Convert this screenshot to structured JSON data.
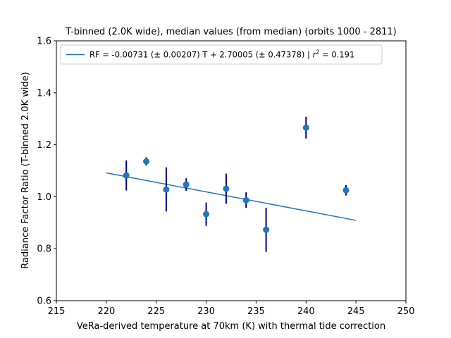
{
  "chart_data": {
    "type": "scatter",
    "title": "T-binned (2.0K wide), median values (from median) (orbits 1000 - 2811)",
    "xlabel": "VeRa-derived temperature at 70km (K) with thermal tide correction",
    "ylabel": "Radiance Factor Ratio (T-binned 2.0K wide)",
    "xlim": [
      215,
      250
    ],
    "ylim": [
      0.6,
      1.6
    ],
    "xticks": [
      215,
      220,
      225,
      230,
      235,
      240,
      245,
      250
    ],
    "yticks": [
      0.6,
      0.8,
      1.0,
      1.2,
      1.4,
      1.6
    ],
    "xtick_labels": [
      "215",
      "220",
      "225",
      "230",
      "235",
      "240",
      "245",
      "250"
    ],
    "ytick_labels": [
      "0.6",
      "0.8",
      "1.0",
      "1.2",
      "1.4",
      "1.6"
    ],
    "grid": false,
    "legend_position": "top-left",
    "points": [
      {
        "x": 222,
        "y": 1.082,
        "err": 0.058
      },
      {
        "x": 224,
        "y": 1.136,
        "err": 0.016
      },
      {
        "x": 226,
        "y": 1.028,
        "err": 0.085
      },
      {
        "x": 228,
        "y": 1.047,
        "err": 0.024
      },
      {
        "x": 230,
        "y": 0.933,
        "err": 0.045
      },
      {
        "x": 232,
        "y": 1.031,
        "err": 0.058
      },
      {
        "x": 234,
        "y": 0.987,
        "err": 0.03
      },
      {
        "x": 236,
        "y": 0.873,
        "err": 0.085
      },
      {
        "x": 240,
        "y": 1.266,
        "err": 0.042
      },
      {
        "x": 244,
        "y": 1.025,
        "err": 0.02
      }
    ],
    "fit": {
      "label": "RF = -0.00731 (± 0.00207) T + 2.70005 (± 0.47378) | ",
      "r2_symbol": "r",
      "r2_superscript": "2",
      "r2_value": " = 0.191",
      "slope": -0.00731,
      "intercept": 2.70005,
      "x_range": [
        220,
        245
      ]
    },
    "colors": {
      "point": "#1f77b4",
      "errorbar": "#00008b",
      "fit_line": "#1f77b4",
      "axes": "#000000",
      "legend_border": "#cccccc"
    }
  }
}
